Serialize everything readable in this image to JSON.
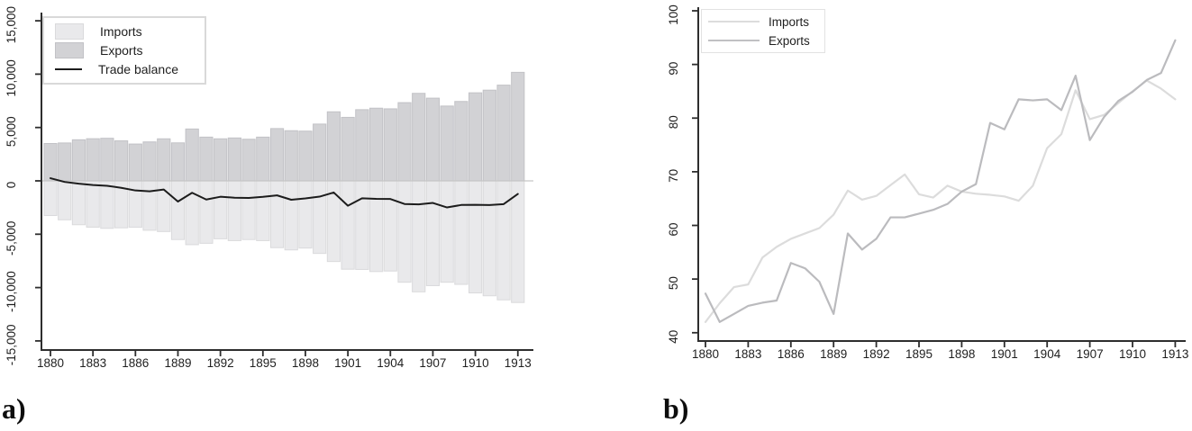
{
  "colors": {
    "imports_bar_fill": "#e9e9eb",
    "imports_bar_stroke": "#dadadc",
    "exports_bar_fill": "#d2d2d5",
    "exports_bar_stroke": "#c2c2c6",
    "balance_line": "#1c1c1c",
    "imports_line": "#dcdcdc",
    "exports_line": "#bbbbbe",
    "axis": "#2e2e2e",
    "zero_line": "#c6c6c6",
    "text": "#1f1f1f"
  },
  "panel_a": {
    "label": "a)",
    "legend": {
      "imports": "Imports",
      "exports": "Exports",
      "balance": "Trade balance"
    }
  },
  "panel_b": {
    "label": "b)",
    "legend": {
      "imports": "Imports",
      "exports": "Exports"
    }
  },
  "chart_data": [
    {
      "id": "a",
      "type": "bar",
      "title": "",
      "xlabel": "",
      "ylabel": "",
      "ylim": [
        -15000,
        15000
      ],
      "grid": false,
      "legend_position": "top-left",
      "years": [
        1880,
        1881,
        1882,
        1883,
        1884,
        1885,
        1886,
        1887,
        1888,
        1889,
        1890,
        1891,
        1892,
        1893,
        1894,
        1895,
        1896,
        1897,
        1898,
        1899,
        1900,
        1901,
        1902,
        1903,
        1904,
        1905,
        1906,
        1907,
        1908,
        1909,
        1910,
        1911,
        1912,
        1913
      ],
      "x_tick_years": [
        1880,
        1883,
        1886,
        1889,
        1892,
        1895,
        1898,
        1901,
        1904,
        1907,
        1910,
        1913
      ],
      "y_ticks": [
        -15000,
        -10000,
        -5000,
        0,
        5000,
        10000,
        15000
      ],
      "y_tick_labels": [
        "-15,000",
        "-10,000",
        "-5,000",
        "0",
        "5,000",
        "10,000",
        "15,000"
      ],
      "series": [
        {
          "name": "Imports",
          "type": "bar",
          "values": [
            -3250,
            -3650,
            -4110,
            -4340,
            -4450,
            -4400,
            -4350,
            -4630,
            -4750,
            -5500,
            -5980,
            -5850,
            -5430,
            -5600,
            -5500,
            -5600,
            -6260,
            -6470,
            -6300,
            -6800,
            -7560,
            -8280,
            -8300,
            -8500,
            -8450,
            -9500,
            -10400,
            -9820,
            -9500,
            -9700,
            -10500,
            -10770,
            -11150,
            -11400
          ]
        },
        {
          "name": "Exports",
          "type": "bar",
          "values": [
            3500,
            3550,
            3850,
            3950,
            3990,
            3750,
            3450,
            3650,
            3940,
            3560,
            4860,
            4100,
            3940,
            4020,
            3900,
            4100,
            4900,
            4700,
            4660,
            5320,
            6470,
            5950,
            6670,
            6810,
            6750,
            7330,
            8200,
            7750,
            7010,
            7440,
            8250,
            8500,
            8970,
            10170
          ]
        },
        {
          "name": "Trade balance",
          "type": "line",
          "values": [
            250,
            -100,
            -260,
            -390,
            -460,
            -650,
            -900,
            -980,
            -810,
            -1940,
            -1120,
            -1750,
            -1490,
            -1580,
            -1600,
            -1500,
            -1360,
            -1770,
            -1640,
            -1480,
            -1090,
            -2330,
            -1630,
            -1690,
            -1700,
            -2170,
            -2200,
            -2070,
            -2490,
            -2260,
            -2250,
            -2270,
            -2180,
            -1230
          ]
        }
      ]
    },
    {
      "id": "b",
      "type": "line",
      "title": "",
      "xlabel": "",
      "ylabel": "",
      "ylim": [
        40,
        100
      ],
      "grid": false,
      "legend_position": "top-left",
      "years": [
        1880,
        1881,
        1882,
        1883,
        1884,
        1885,
        1886,
        1887,
        1888,
        1889,
        1890,
        1891,
        1892,
        1893,
        1894,
        1895,
        1896,
        1897,
        1898,
        1899,
        1900,
        1901,
        1902,
        1903,
        1904,
        1905,
        1906,
        1907,
        1908,
        1909,
        1910,
        1911,
        1912,
        1913
      ],
      "x_tick_years": [
        1880,
        1883,
        1886,
        1889,
        1892,
        1895,
        1898,
        1901,
        1904,
        1907,
        1910,
        1913
      ],
      "y_ticks": [
        40,
        50,
        60,
        70,
        80,
        90,
        100
      ],
      "y_tick_labels": [
        "40",
        "50",
        "60",
        "70",
        "80",
        "90",
        "100"
      ],
      "series": [
        {
          "name": "Imports",
          "type": "line",
          "values": [
            42,
            45.5,
            48.5,
            49,
            54,
            56,
            57.5,
            58.5,
            59.5,
            62,
            66.5,
            64.8,
            65.5,
            67.5,
            69.5,
            65.8,
            65.2,
            67.4,
            66.3,
            65.9,
            65.7,
            65.4,
            64.6,
            67.4,
            74.4,
            77,
            85.2,
            79.8,
            80.6,
            82.8,
            85,
            87,
            85.5,
            83.5
          ]
        },
        {
          "name": "Exports",
          "type": "line",
          "values": [
            47.3,
            42,
            43.5,
            45,
            45.6,
            46,
            53,
            52,
            49.5,
            43.5,
            58.5,
            55.5,
            57.5,
            61.5,
            61.5,
            62.2,
            62.9,
            64,
            66.3,
            67.7,
            79.1,
            77.9,
            83.5,
            83.3,
            83.5,
            81.5,
            87.9,
            75.9,
            80.2,
            83.2,
            84.9,
            87.1,
            88.4,
            94.5
          ]
        }
      ]
    }
  ]
}
